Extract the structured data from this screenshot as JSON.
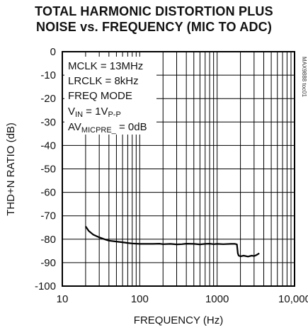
{
  "chart_data": {
    "type": "line",
    "title_line1": "TOTAL HARMONIC DISTORTION PLUS",
    "title_line2": "NOISE vs. FREQUENCY (MIC TO ADC)",
    "xlabel": "FREQUENCY (Hz)",
    "ylabel": "THD+N RATIO (dB)",
    "xscale": "log",
    "xlim": [
      10,
      10000
    ],
    "ylim": [
      -100,
      0
    ],
    "x_ticks": [
      {
        "value": 10,
        "label": "10"
      },
      {
        "value": 100,
        "label": "100"
      },
      {
        "value": 1000,
        "label": "1000"
      },
      {
        "value": 10000,
        "label": "10,000"
      }
    ],
    "y_ticks": [
      {
        "value": 0,
        "label": "0"
      },
      {
        "value": -10,
        "label": "-10"
      },
      {
        "value": -20,
        "label": "-20"
      },
      {
        "value": -30,
        "label": "-30"
      },
      {
        "value": -40,
        "label": "-40"
      },
      {
        "value": -50,
        "label": "-50"
      },
      {
        "value": -60,
        "label": "-60"
      },
      {
        "value": -70,
        "label": "-70"
      },
      {
        "value": -80,
        "label": "-80"
      },
      {
        "value": -90,
        "label": "-90"
      },
      {
        "value": -100,
        "label": "-100"
      }
    ],
    "grid": true,
    "annotations": {
      "line1": "MCLK = 13MHz",
      "line2": "LRCLK = 8kHz",
      "line3": "FREQ MODE",
      "line4_main": "V",
      "line4_sub": "IN",
      "line4_rest": " = 1V",
      "line4_sub2": "P-P",
      "line5_main": "AV",
      "line5_sub": "MICPRE_",
      "line5_rest": " = 0dB"
    },
    "side_label": "MAX9888 toc01",
    "series": [
      {
        "x": [
          20,
          22,
          25,
          30,
          35,
          40,
          50,
          60,
          70,
          80,
          100,
          120,
          150,
          180,
          200,
          250,
          300,
          350,
          400,
          500,
          600,
          700,
          800,
          900,
          1000,
          1200,
          1500,
          1700,
          1800,
          1850,
          1900,
          2000,
          2200,
          2500,
          2800,
          3000,
          3200,
          3500
        ],
        "y": [
          -74.5,
          -76.5,
          -78,
          -79.2,
          -80,
          -80.6,
          -81,
          -81.3,
          -81.6,
          -81.8,
          -82,
          -82,
          -82,
          -81.9,
          -82.1,
          -82,
          -82.2,
          -82.1,
          -81.9,
          -82,
          -82.2,
          -82,
          -81.9,
          -82.1,
          -82,
          -82.1,
          -82,
          -82,
          -82.2,
          -86,
          -87,
          -87.3,
          -87,
          -87.4,
          -87,
          -87.2,
          -86.8,
          -86
        ]
      }
    ]
  }
}
